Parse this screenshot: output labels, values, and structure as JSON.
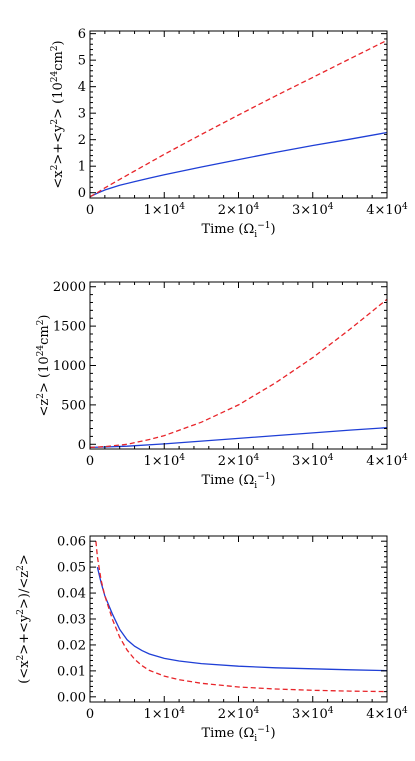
{
  "colors": {
    "solid_series": "#1f3fd6",
    "dashed_series": "#e8252a",
    "axes": "#000000"
  },
  "chart_data": [
    {
      "type": "line",
      "xlabel": "Time (Ω_i^-1)",
      "ylabel": "<x^2>+<y^2> (10^24cm^2)",
      "xlim": [
        0,
        40000
      ],
      "ylim": [
        -0.2,
        6.1
      ],
      "x_ticks": [
        10000,
        20000,
        30000,
        40000
      ],
      "x_tick_labels": [
        {
          "mant": "1×10",
          "exp": "4"
        },
        {
          "mant": "2×10",
          "exp": "4"
        },
        {
          "mant": "3×10",
          "exp": "4"
        },
        {
          "mant": "4×10",
          "exp": "4"
        }
      ],
      "y_ticks": [
        0,
        1,
        2,
        3,
        4,
        5,
        6
      ],
      "y_tick_labels": [
        "0",
        "1",
        "2",
        "3",
        "4",
        "5",
        "6"
      ],
      "series": [
        {
          "style": "solid",
          "x": [
            0,
            1000,
            2000,
            4000,
            6000,
            8000,
            10000,
            15000,
            20000,
            25000,
            30000,
            35000,
            40000
          ],
          "y": [
            -0.15,
            -0.02,
            0.1,
            0.28,
            0.42,
            0.55,
            0.68,
            0.97,
            1.25,
            1.52,
            1.78,
            2.02,
            2.27
          ]
        },
        {
          "style": "dashed",
          "x": [
            0,
            1000,
            2000,
            4000,
            6000,
            8000,
            10000,
            15000,
            20000,
            25000,
            30000,
            35000,
            40000
          ],
          "y": [
            -0.15,
            0.0,
            0.18,
            0.5,
            0.82,
            1.13,
            1.45,
            2.2,
            2.93,
            3.65,
            4.35,
            5.05,
            5.75
          ]
        }
      ]
    },
    {
      "type": "line",
      "xlabel": "Time (Ω_i^-1)",
      "ylabel": "<z^2> (10^24cm^2)",
      "xlim": [
        0,
        40000
      ],
      "ylim": [
        -60,
        2060
      ],
      "x_ticks": [
        10000,
        20000,
        30000,
        40000
      ],
      "x_tick_labels": [
        {
          "mant": "1×10",
          "exp": "4"
        },
        {
          "mant": "2×10",
          "exp": "4"
        },
        {
          "mant": "3×10",
          "exp": "4"
        },
        {
          "mant": "4×10",
          "exp": "4"
        }
      ],
      "y_ticks": [
        0,
        500,
        1000,
        1500,
        2000
      ],
      "y_tick_labels": [
        "0",
        "500",
        "1000",
        "1500",
        "2000"
      ],
      "series": [
        {
          "style": "solid",
          "x": [
            0,
            2000,
            5000,
            10000,
            15000,
            20000,
            25000,
            30000,
            35000,
            40000
          ],
          "y": [
            -40,
            -35,
            -25,
            5,
            40,
            75,
            110,
            145,
            180,
            210
          ]
        },
        {
          "style": "dashed",
          "x": [
            0,
            2000,
            5000,
            8000,
            10000,
            15000,
            20000,
            25000,
            30000,
            35000,
            40000
          ],
          "y": [
            -40,
            -30,
            0,
            60,
            110,
            280,
            500,
            780,
            1100,
            1460,
            1840
          ]
        }
      ]
    },
    {
      "type": "line",
      "xlabel": "Time (Ω_i^-1)",
      "ylabel": "(<x^2>+<y^2>)/<z^2>",
      "xlim": [
        0,
        40000
      ],
      "ylim": [
        -0.002,
        0.062
      ],
      "x_ticks": [
        10000,
        20000,
        30000,
        40000
      ],
      "x_tick_labels": [
        {
          "mant": "1×10",
          "exp": "4"
        },
        {
          "mant": "2×10",
          "exp": "4"
        },
        {
          "mant": "3×10",
          "exp": "4"
        },
        {
          "mant": "4×10",
          "exp": "4"
        }
      ],
      "y_ticks": [
        0.0,
        0.01,
        0.02,
        0.03,
        0.04,
        0.05,
        0.06
      ],
      "y_tick_labels": [
        "0.00",
        "0.01",
        "0.02",
        "0.03",
        "0.04",
        "0.05",
        "0.06"
      ],
      "series": [
        {
          "style": "solid",
          "x": [
            1000,
            1500,
            2000,
            3000,
            4000,
            5000,
            6000,
            7000,
            8000,
            10000,
            12000,
            15000,
            20000,
            25000,
            30000,
            35000,
            40000
          ],
          "y": [
            0.05,
            0.044,
            0.039,
            0.032,
            0.026,
            0.022,
            0.0195,
            0.0178,
            0.0165,
            0.0148,
            0.0138,
            0.0128,
            0.0118,
            0.0112,
            0.0108,
            0.0104,
            0.0101
          ]
        },
        {
          "style": "dashed",
          "x": [
            800,
            1000,
            1500,
            2000,
            3000,
            4000,
            5000,
            6000,
            7000,
            8000,
            10000,
            12000,
            15000,
            20000,
            25000,
            30000,
            35000,
            40000
          ],
          "y": [
            0.06,
            0.054,
            0.045,
            0.039,
            0.03,
            0.023,
            0.018,
            0.0145,
            0.012,
            0.0102,
            0.008,
            0.0066,
            0.0052,
            0.0038,
            0.003,
            0.0025,
            0.0022,
            0.002
          ]
        }
      ]
    }
  ]
}
